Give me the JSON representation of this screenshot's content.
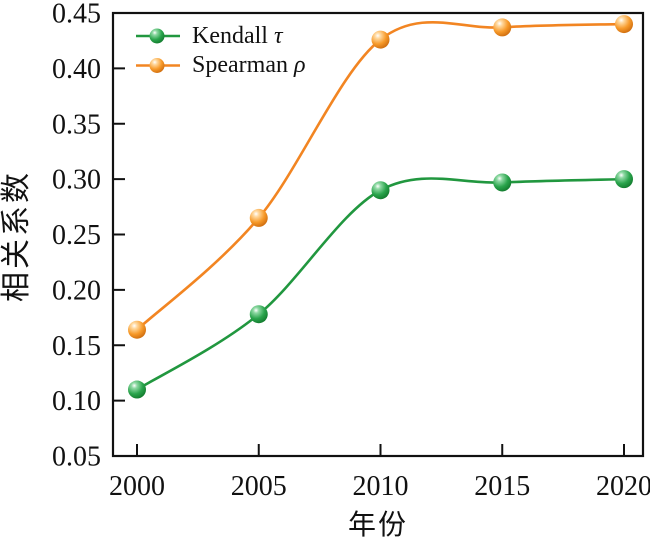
{
  "figure": {
    "background": "#ffffff",
    "axis_color": "#111111",
    "text_color": "#111111"
  },
  "chart_data": {
    "type": "line",
    "title": "",
    "xlabel": "年份",
    "ylabel": "相关系数",
    "x": [
      2000,
      2005,
      2010,
      2015,
      2020
    ],
    "xtick_labels": [
      "2000",
      "2005",
      "2010",
      "2015",
      "2020"
    ],
    "ylim": [
      0.05,
      0.45
    ],
    "yticks": [
      0.05,
      0.1,
      0.15,
      0.2,
      0.25,
      0.3,
      0.35,
      0.4,
      0.45
    ],
    "ytick_labels": [
      "0.05",
      "0.10",
      "0.15",
      "0.20",
      "0.25",
      "0.30",
      "0.35",
      "0.40",
      "0.45"
    ],
    "grid": false,
    "legend_position": "top-left-inside",
    "series": [
      {
        "name": "Kendall τ",
        "name_prefix": "Kendall",
        "name_symbol": "τ",
        "color": "#21973F",
        "marker": "glossy-ball",
        "marker_gradient": [
          "#ffffff",
          "#8fd9a4",
          "#2aa44c",
          "#0b6e24"
        ],
        "values": [
          0.11,
          0.178,
          0.29,
          0.297,
          0.3
        ]
      },
      {
        "name": "Spearman ρ",
        "name_prefix": "Spearman",
        "name_symbol": "ρ",
        "color": "#F28522",
        "marker": "glossy-ball",
        "marker_gradient": [
          "#ffffff",
          "#ffd9a0",
          "#f79a2a",
          "#c25f06"
        ],
        "values": [
          0.164,
          0.265,
          0.426,
          0.437,
          0.44
        ]
      }
    ]
  }
}
